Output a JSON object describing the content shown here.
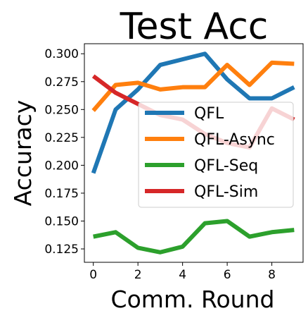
{
  "chart_data": {
    "type": "line",
    "title": "Test Acc",
    "xlabel": "Comm. Round",
    "ylabel": "Accuracy",
    "x": [
      0,
      1,
      2,
      3,
      4,
      5,
      6,
      7,
      8,
      9
    ],
    "xlim": [
      -0.4,
      9.4
    ],
    "ylim": [
      0.113,
      0.309
    ],
    "xticks": [
      0,
      2,
      4,
      6,
      8
    ],
    "yticks": [
      0.125,
      0.15,
      0.175,
      0.2,
      0.225,
      0.25,
      0.275,
      0.3
    ],
    "ytick_labels": [
      "0.125",
      "0.150",
      "0.175",
      "0.200",
      "0.225",
      "0.250",
      "0.275",
      "0.300"
    ],
    "grid": false,
    "legend_position": "center-right",
    "series": [
      {
        "name": "QFL",
        "color": "#1f77b4",
        "values": [
          0.193,
          0.25,
          0.268,
          0.29,
          0.295,
          0.3,
          0.277,
          0.26,
          0.26,
          0.27
        ]
      },
      {
        "name": "QFL-Async",
        "color": "#ff7f0e",
        "values": [
          0.249,
          0.272,
          0.274,
          0.268,
          0.27,
          0.27,
          0.29,
          0.272,
          0.292,
          0.291
        ]
      },
      {
        "name": "QFL-Seq",
        "color": "#2ca02c",
        "values": [
          0.136,
          0.14,
          0.126,
          0.122,
          0.127,
          0.148,
          0.15,
          0.136,
          0.14,
          0.142
        ]
      },
      {
        "name": "QFL-Sim",
        "color": "#d62728",
        "values": [
          0.28,
          0.265,
          0.255,
          0.245,
          0.241,
          0.228,
          0.22,
          0.216,
          0.251,
          0.241
        ]
      }
    ]
  }
}
